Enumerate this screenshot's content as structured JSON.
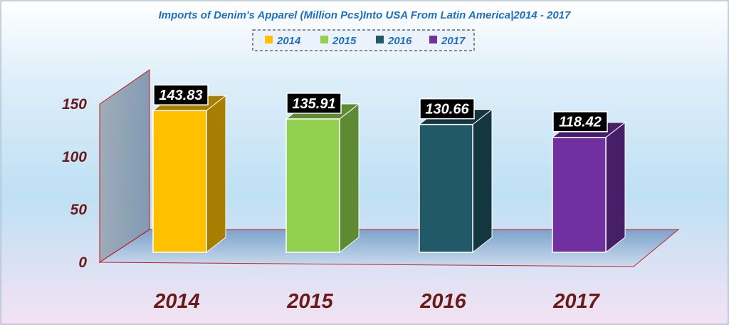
{
  "chart_data": {
    "type": "bar",
    "title": "Imports of Denim's  Apparel (Million Pcs)Into USA From Latin America|2014 - 2017",
    "categories": [
      "2014",
      "2015",
      "2016",
      "2017"
    ],
    "values": [
      143.83,
      135.91,
      130.66,
      118.42
    ],
    "legend": [
      "2014",
      "2015",
      "2016",
      "2017"
    ],
    "legend_position": "top",
    "y_ticks": [
      "0",
      "50",
      "100",
      "150"
    ],
    "ylim": [
      0,
      150
    ],
    "xlabel": "",
    "ylabel": "",
    "grid": false,
    "bar_colors": [
      "#ffc000",
      "#92d050",
      "#215968",
      "#7030a0"
    ],
    "bar_side_colors": [
      "#a87e00",
      "#5f8a34",
      "#14363f",
      "#471e68"
    ]
  },
  "colors": {
    "title": "#1f6fbf",
    "axis_text": "#6b1a1a",
    "axis_line": "#c00000",
    "legend_text": "#1f6fbf",
    "data_label_bg": "#000000",
    "data_label_text": "#ffffff"
  }
}
